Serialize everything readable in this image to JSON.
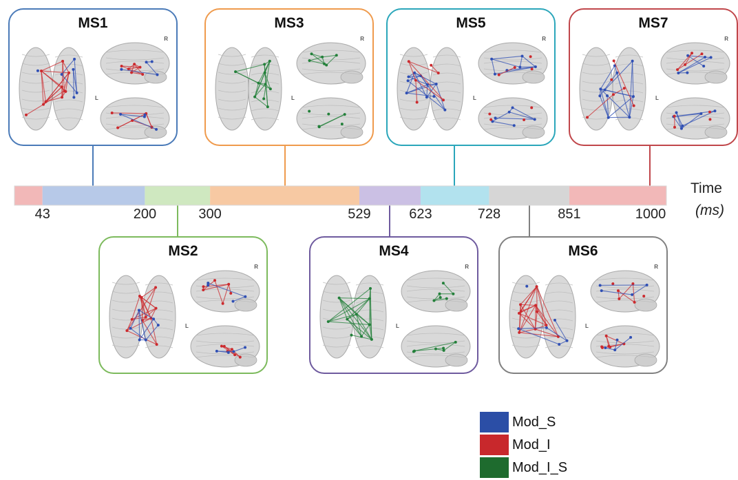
{
  "timeline": {
    "axis_title": "Time",
    "axis_unit": "(ms)",
    "ticks": [
      "43",
      "200",
      "300",
      "529",
      "623",
      "728",
      "851",
      "1000"
    ],
    "segments": [
      {
        "start": 0,
        "end": 43,
        "color": "#f2b8b8"
      },
      {
        "start": 43,
        "end": 200,
        "color": "#b7c9e8"
      },
      {
        "start": 200,
        "end": 300,
        "color": "#cfe8c0"
      },
      {
        "start": 300,
        "end": 529,
        "color": "#f7c9a3"
      },
      {
        "start": 529,
        "end": 623,
        "color": "#cbc0e4"
      },
      {
        "start": 623,
        "end": 728,
        "color": "#b2e2ee"
      },
      {
        "start": 728,
        "end": 851,
        "color": "#d6d6d6"
      },
      {
        "start": 851,
        "end": 1000,
        "color": "#f2b8b8"
      }
    ]
  },
  "microstates": [
    {
      "label": "MS1",
      "row": "top",
      "time": 120,
      "border": "#4a7ab8",
      "networks": [
        "red",
        "blue"
      ]
    },
    {
      "label": "MS2",
      "row": "bottom",
      "time": 250,
      "border": "#7cba5c",
      "networks": [
        "red",
        "blue"
      ]
    },
    {
      "label": "MS3",
      "row": "top",
      "time": 415,
      "border": "#ef9a4c",
      "networks": [
        "green"
      ]
    },
    {
      "label": "MS4",
      "row": "bottom",
      "time": 576,
      "border": "#6e5a9e",
      "networks": [
        "green"
      ]
    },
    {
      "label": "MS5",
      "row": "top",
      "time": 675,
      "border": "#2aa6ba",
      "networks": [
        "blue",
        "red"
      ]
    },
    {
      "label": "MS6",
      "row": "bottom",
      "time": 790,
      "border": "#808080",
      "networks": [
        "red",
        "blue"
      ]
    },
    {
      "label": "MS7",
      "row": "top",
      "time": 975,
      "border": "#c0464a",
      "networks": [
        "blue",
        "red"
      ]
    }
  ],
  "legend": [
    {
      "label": "Mod_S",
      "color": "#2b4ea6"
    },
    {
      "label": "Mod_I",
      "color": "#c8282c"
    },
    {
      "label": "Mod_I_S",
      "color": "#1e6b2e"
    }
  ],
  "colors": {
    "red": "#cc2a2e",
    "blue": "#2f4fb4",
    "green": "#23803a"
  },
  "brain_marks": {
    "right": "R",
    "left": "L"
  }
}
